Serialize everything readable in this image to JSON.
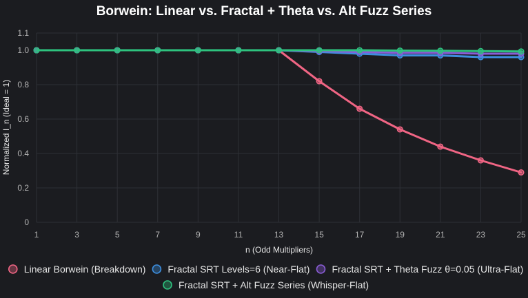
{
  "chart_data": {
    "type": "line",
    "title": "Borwein: Linear vs. Fractal + Theta vs. Alt Fuzz Series",
    "xlabel": "n (Odd Multipliers)",
    "ylabel": "Normalized I_n (Ideal = 1)",
    "x": [
      1,
      3,
      5,
      7,
      9,
      11,
      13,
      15,
      17,
      19,
      21,
      23,
      25
    ],
    "xlim": [
      1,
      25
    ],
    "ylim": [
      0,
      1.1
    ],
    "yticks": [
      0,
      0.2,
      0.4,
      0.6,
      0.8,
      1.0,
      1.1
    ],
    "ytick_labels": [
      "0",
      "0.2",
      "0.4",
      "0.6",
      "0.8",
      "1.0",
      "1.1"
    ],
    "grid": true,
    "legend_position": "bottom",
    "series": [
      {
        "name": "Linear Borwein (Breakdown)",
        "color": "#f06584",
        "values": [
          1.0,
          1.0,
          1.0,
          1.0,
          1.0,
          1.0,
          1.0,
          0.82,
          0.66,
          0.54,
          0.44,
          0.36,
          0.29
        ]
      },
      {
        "name": "Fractal SRT Levels=6 (Near-Flat)",
        "color": "#3d8fe0",
        "values": [
          1.0,
          1.0,
          1.0,
          1.0,
          1.0,
          1.0,
          1.0,
          0.99,
          0.98,
          0.97,
          0.97,
          0.96,
          0.96
        ]
      },
      {
        "name": "Fractal SRT + Theta Fuzz θ=0.05 (Ultra-Flat)",
        "color": "#8a5cd6",
        "values": [
          1.0,
          1.0,
          1.0,
          1.0,
          1.0,
          1.0,
          1.0,
          0.995,
          0.99,
          0.985,
          0.985,
          0.98,
          0.98
        ]
      },
      {
        "name": "Fractal SRT + Alt Fuzz Series (Whisper-Flat)",
        "color": "#2ec27e",
        "values": [
          1.0,
          1.0,
          1.0,
          1.0,
          1.0,
          1.0,
          1.0,
          1.0,
          1.0,
          0.998,
          0.997,
          0.995,
          0.993
        ]
      }
    ]
  }
}
